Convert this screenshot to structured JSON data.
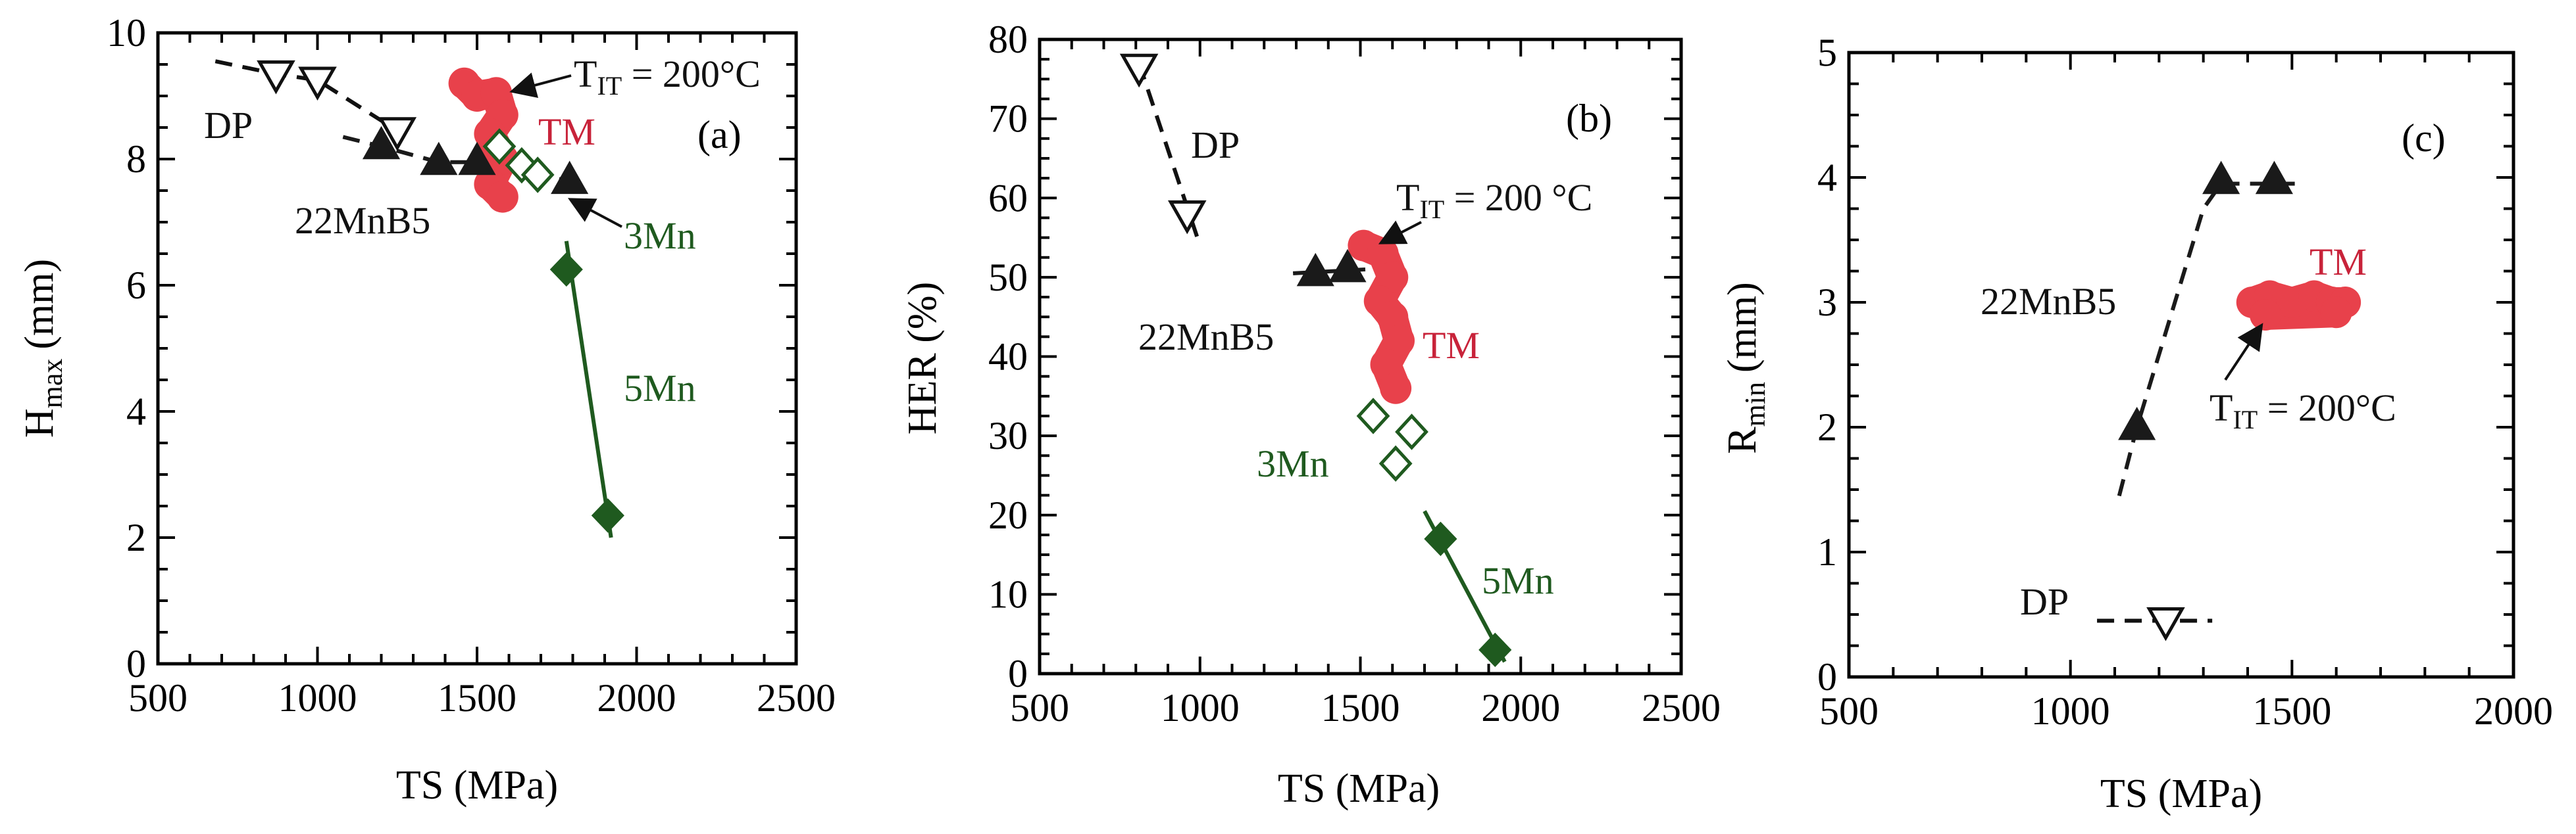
{
  "chart_data": [
    {
      "type": "scatter",
      "panel_label": "(a)",
      "xlabel": "TS (MPa)",
      "ylabel": "H",
      "ylabel_sub": "max",
      "ylabel_unit": "(mm)",
      "xlim": [
        500,
        2500
      ],
      "ylim": [
        0,
        10
      ],
      "xticks": [
        500,
        1000,
        1500,
        2000,
        2500
      ],
      "yticks": [
        0,
        2,
        4,
        6,
        8,
        10
      ],
      "grid": false,
      "series": [
        {
          "name": "DP",
          "marker": "triangle-down-open",
          "color": "#111111",
          "line": "dashed",
          "line_x": [
            680,
            870,
            1000,
            1250
          ],
          "line_y": [
            9.55,
            9.35,
            9.25,
            8.45
          ],
          "x": [
            870,
            1000,
            1250
          ],
          "y": [
            9.35,
            9.25,
            8.45
          ]
        },
        {
          "name": "22MnB5",
          "marker": "triangle-up-filled",
          "color": "#1a1a1a",
          "line": "dashed",
          "line_x": [
            1080,
            1200,
            1380,
            1500,
            1790
          ],
          "line_y": [
            8.35,
            8.2,
            7.95,
            7.95,
            7.65
          ],
          "x": [
            1200,
            1380,
            1500,
            1790
          ],
          "y": [
            8.2,
            7.95,
            7.95,
            7.65
          ]
        },
        {
          "name": "3Mn",
          "marker": "diamond-open",
          "color": "#1f5a1f",
          "line": "none",
          "x": [
            1570,
            1640,
            1690
          ],
          "y": [
            8.2,
            7.9,
            7.75
          ]
        },
        {
          "name": "5Mn",
          "marker": "diamond-filled",
          "color": "#1f5a1f",
          "line": "solid",
          "line_x": [
            1780,
            1920
          ],
          "line_y": [
            6.7,
            2.0
          ],
          "x": [
            1780,
            1910
          ],
          "y": [
            6.25,
            2.35
          ]
        },
        {
          "name": "TM",
          "marker": "region",
          "color": "#e8414b",
          "x": [
            1460,
            1500,
            1560,
            1580,
            1540,
            1580,
            1540,
            1580
          ],
          "y": [
            9.2,
            9.0,
            9.05,
            8.7,
            8.4,
            8.0,
            7.6,
            7.4
          ]
        }
      ],
      "annotations": [
        {
          "text": "DP",
          "color": "#111111"
        },
        {
          "text": "22MnB5",
          "color": "#111111"
        },
        {
          "text": "3Mn",
          "color": "#1f5a1f"
        },
        {
          "text": "5Mn",
          "color": "#1f5a1f"
        },
        {
          "text": "TM",
          "color": "#c8233a"
        },
        {
          "text": "T",
          "sub": "IT",
          "rest": " = 200°C",
          "color": "#111111"
        }
      ]
    },
    {
      "type": "scatter",
      "panel_label": "(b)",
      "xlabel": "TS (MPa)",
      "ylabel": "HER (%)",
      "xlim": [
        500,
        2500
      ],
      "ylim": [
        0,
        80
      ],
      "xticks": [
        500,
        1000,
        1500,
        2000,
        2500
      ],
      "yticks": [
        0,
        10,
        20,
        30,
        40,
        50,
        60,
        70,
        80
      ],
      "grid": false,
      "series": [
        {
          "name": "DP",
          "marker": "triangle-down-open",
          "color": "#111111",
          "line": "dashed",
          "line_x": [
            810,
            1000
          ],
          "line_y": [
            77,
            54
          ],
          "x": [
            810,
            960
          ],
          "y": [
            76.5,
            58
          ]
        },
        {
          "name": "22MnB5",
          "marker": "triangle-up-filled",
          "color": "#1a1a1a",
          "line": "dashed",
          "line_x": [
            1290,
            1520
          ],
          "line_y": [
            50.5,
            51
          ],
          "x": [
            1360,
            1460
          ],
          "y": [
            50.5,
            51
          ]
        },
        {
          "name": "3Mn",
          "marker": "diamond-open",
          "color": "#1f5a1f",
          "line": "none",
          "x": [
            1540,
            1660,
            1610
          ],
          "y": [
            32.5,
            30.5,
            26.5
          ]
        },
        {
          "name": "5Mn",
          "marker": "diamond-filled",
          "color": "#1f5a1f",
          "line": "solid",
          "line_x": [
            1700,
            1950
          ],
          "line_y": [
            20.5,
            1.5
          ],
          "x": [
            1750,
            1920
          ],
          "y": [
            17,
            3
          ]
        },
        {
          "name": "TM",
          "marker": "region",
          "color": "#e8414b",
          "x": [
            1510,
            1570,
            1600,
            1560,
            1600,
            1620,
            1580,
            1610
          ],
          "y": [
            54,
            53,
            50,
            47,
            45,
            42,
            39,
            36
          ]
        }
      ],
      "annotations": [
        {
          "text": "DP",
          "color": "#111111"
        },
        {
          "text": "22MnB5",
          "color": "#111111"
        },
        {
          "text": "3Mn",
          "color": "#1f5a1f"
        },
        {
          "text": "5Mn",
          "color": "#1f5a1f"
        },
        {
          "text": "TM",
          "color": "#c8233a"
        },
        {
          "text": "T",
          "sub": "IT",
          "rest": " = 200 °C",
          "color": "#111111"
        }
      ]
    },
    {
      "type": "scatter",
      "panel_label": "(c)",
      "xlabel": "TS (MPa)",
      "ylabel": "R",
      "ylabel_sub": "min",
      "ylabel_unit": "(mm)",
      "xlim": [
        500,
        2000
      ],
      "ylim": [
        0,
        5
      ],
      "xticks": [
        500,
        1000,
        1500,
        2000
      ],
      "yticks": [
        0,
        1,
        2,
        3,
        4,
        5
      ],
      "grid": false,
      "series": [
        {
          "name": "22MnB5",
          "marker": "triangle-up-filled",
          "color": "#1a1a1a",
          "line": "dashed",
          "line_x": [
            1110,
            1150,
            1300,
            1340,
            1510
          ],
          "line_y": [
            1.45,
            2.0,
            3.75,
            3.95,
            3.95
          ],
          "x": [
            1150,
            1340,
            1460
          ],
          "y": [
            2.0,
            3.97,
            3.97
          ]
        },
        {
          "name": "DP",
          "marker": "triangle-down-open",
          "color": "#111111",
          "line": "dashed",
          "line_x": [
            1060,
            1320
          ],
          "line_y": [
            0.45,
            0.45
          ],
          "x": [
            1215
          ],
          "y": [
            0.45
          ]
        },
        {
          "name": "TM",
          "marker": "region",
          "color": "#e8414b",
          "x": [
            1410,
            1450,
            1500,
            1550,
            1590,
            1620,
            1440,
            1600
          ],
          "y": [
            3.0,
            3.05,
            3.0,
            3.05,
            3.0,
            3.0,
            2.9,
            2.92
          ]
        }
      ],
      "annotations": [
        {
          "text": "22MnB5",
          "color": "#111111"
        },
        {
          "text": "DP",
          "color": "#111111"
        },
        {
          "text": "TM",
          "color": "#c8233a"
        },
        {
          "text": "T",
          "sub": "IT",
          "rest": " = 200°C",
          "color": "#111111"
        }
      ]
    }
  ]
}
